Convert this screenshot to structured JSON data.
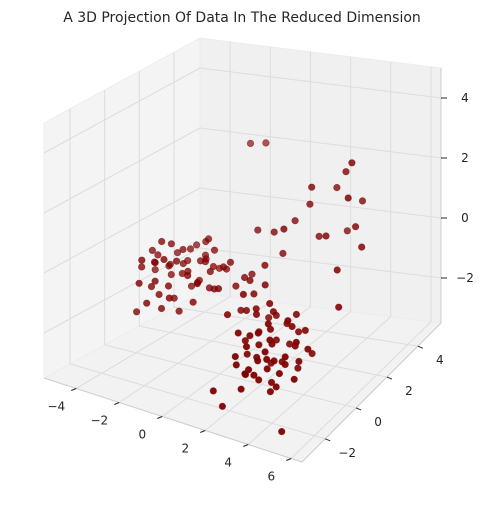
{
  "chart_data": {
    "type": "scatter",
    "projection": "3d",
    "title": "A 3D Projection Of Data In The Reduced Dimension",
    "xlabel": "",
    "ylabel": "",
    "zlabel": "",
    "marker_color": "#800000",
    "grid": true,
    "legend": "none",
    "xlim": [
      -5.5,
      6.5
    ],
    "ylim": [
      -3.5,
      5.5
    ],
    "zlim": [
      -3.5,
      5
    ],
    "x_ticks": [
      "−4",
      "−2",
      "0",
      "2",
      "4",
      "6"
    ],
    "y_ticks": [
      "−2",
      "0",
      "2",
      "4"
    ],
    "z_ticks": [
      "−2",
      "0",
      "2",
      "4"
    ],
    "clusters_note": "",
    "series": [
      {
        "name": "",
        "points": [
          [
            -3.9,
            1.8,
            -1.2
          ],
          [
            -4.1,
            1.2,
            -0.9
          ],
          [
            -3.5,
            2.1,
            -1.5
          ],
          [
            -4.4,
            1.6,
            -1.1
          ],
          [
            -3.2,
            1.4,
            -0.8
          ],
          [
            -3.7,
            2.4,
            -1.3
          ],
          [
            -4.0,
            0.9,
            -1.6
          ],
          [
            -3.3,
            1.9,
            -0.6
          ],
          [
            -4.6,
            2.0,
            -1.0
          ],
          [
            -3.8,
            1.1,
            -1.9
          ],
          [
            -2.9,
            1.7,
            -1.2
          ],
          [
            -3.6,
            2.7,
            -0.9
          ],
          [
            -4.2,
            2.3,
            -1.7
          ],
          [
            -3.1,
            0.8,
            -1.4
          ],
          [
            -4.8,
            1.3,
            -1.2
          ],
          [
            -3.4,
            1.5,
            -2.1
          ],
          [
            -2.7,
            2.2,
            -1.0
          ],
          [
            -3.9,
            2.9,
            -1.4
          ],
          [
            -4.3,
            0.7,
            -0.7
          ],
          [
            -3.0,
            2.5,
            -1.8
          ],
          [
            -2.5,
            1.2,
            -1.1
          ],
          [
            -3.5,
            0.5,
            -1.2
          ],
          [
            -4.5,
            2.6,
            -1.5
          ],
          [
            -2.8,
            2.8,
            -0.5
          ],
          [
            -3.2,
            3.1,
            -1.2
          ],
          [
            -4.0,
            1.5,
            -0.3
          ],
          [
            -3.6,
            1.0,
            -2.3
          ],
          [
            -2.6,
            1.9,
            -1.6
          ],
          [
            -4.7,
            1.8,
            -0.8
          ],
          [
            -3.3,
            2.4,
            -2.0
          ],
          [
            -2.3,
            2.0,
            -0.9
          ],
          [
            -3.8,
            3.3,
            -1.0
          ],
          [
            -4.1,
            0.3,
            -1.3
          ],
          [
            -2.9,
            0.6,
            -1.7
          ],
          [
            -3.7,
            1.7,
            -0.4
          ],
          [
            -2.2,
            1.4,
            -1.4
          ],
          [
            -3.1,
            3.0,
            -0.7
          ],
          [
            -4.4,
            2.9,
            -1.2
          ],
          [
            -2.4,
            2.6,
            -1.3
          ],
          [
            -3.4,
            0.9,
            -0.6
          ],
          [
            -1.9,
            1.8,
            -1.1
          ],
          [
            -3.0,
            1.3,
            -2.4
          ],
          [
            -2.1,
            2.3,
            -0.6
          ],
          [
            -3.9,
            0.5,
            -2.0
          ],
          [
            -1.7,
            1.5,
            -1.5
          ],
          [
            -2.6,
            3.2,
            -1.6
          ],
          [
            -4.9,
            2.2,
            -1.6
          ],
          [
            -1.5,
            2.1,
            -1.0
          ],
          [
            -2.0,
            0.9,
            -1.8
          ],
          [
            -3.5,
            3.5,
            -1.5
          ],
          [
            3.1,
            -0.8,
            -1.6
          ],
          [
            3.5,
            -1.2,
            -1.9
          ],
          [
            2.8,
            -0.5,
            -1.3
          ],
          [
            3.8,
            -0.9,
            -2.1
          ],
          [
            3.3,
            -1.5,
            -1.5
          ],
          [
            2.6,
            -1.1,
            -2.0
          ],
          [
            3.9,
            -0.4,
            -1.7
          ],
          [
            3.0,
            -1.8,
            -2.2
          ],
          [
            3.6,
            -0.2,
            -1.2
          ],
          [
            2.4,
            -0.7,
            -1.8
          ],
          [
            4.1,
            -1.3,
            -1.6
          ],
          [
            3.2,
            -0.3,
            -2.4
          ],
          [
            2.9,
            -1.4,
            -1.0
          ],
          [
            3.7,
            -1.9,
            -1.8
          ],
          [
            2.2,
            -1.0,
            -1.4
          ],
          [
            4.3,
            -0.7,
            -2.0
          ],
          [
            3.4,
            -2.1,
            -1.5
          ],
          [
            2.7,
            0.0,
            -1.9
          ],
          [
            3.9,
            -1.6,
            -2.5
          ],
          [
            3.0,
            -0.9,
            -0.9
          ],
          [
            2.5,
            -1.7,
            -2.3
          ],
          [
            4.0,
            0.1,
            -1.4
          ],
          [
            3.3,
            -1.1,
            -2.7
          ],
          [
            2.1,
            -0.3,
            -1.6
          ],
          [
            4.4,
            -1.0,
            -1.2
          ],
          [
            3.6,
            -2.3,
            -2.0
          ],
          [
            2.8,
            -2.0,
            -1.2
          ],
          [
            3.1,
            0.3,
            -2.1
          ],
          [
            3.8,
            -0.1,
            -2.6
          ],
          [
            2.3,
            -1.4,
            -2.5
          ],
          [
            4.2,
            -1.8,
            -1.9
          ],
          [
            3.5,
            0.2,
            -1.0
          ],
          [
            2.6,
            -0.2,
            -2.6
          ],
          [
            3.2,
            -2.4,
            -1.7
          ],
          [
            3.7,
            -0.6,
            -0.8
          ],
          [
            2.0,
            -0.9,
            -2.1
          ],
          [
            4.5,
            -0.4,
            -1.7
          ],
          [
            3.4,
            -1.3,
            -2.9
          ],
          [
            2.9,
            0.4,
            -1.5
          ],
          [
            3.9,
            -2.2,
            -1.3
          ],
          [
            1.8,
            -1.2,
            -1.3
          ],
          [
            4.1,
            0.4,
            -2.3
          ],
          [
            3.0,
            -2.6,
            -2.3
          ],
          [
            2.4,
            0.2,
            -1.1
          ],
          [
            3.6,
            -1.6,
            -1.0
          ],
          [
            1.6,
            -0.5,
            -1.9
          ],
          [
            4.6,
            -1.4,
            -2.2
          ],
          [
            2.7,
            -2.5,
            -1.6
          ],
          [
            3.3,
            0.6,
            -1.8
          ],
          [
            2.2,
            -1.9,
            -1.7
          ],
          [
            1.0,
            0.8,
            -1.0
          ],
          [
            0.5,
            1.2,
            -0.8
          ],
          [
            1.5,
            0.3,
            -1.2
          ],
          [
            0.0,
            1.5,
            -0.9
          ],
          [
            1.9,
            -0.2,
            -1.1
          ],
          [
            -0.5,
            1.6,
            -1.3
          ],
          [
            0.8,
            0.6,
            -1.5
          ],
          [
            2.3,
            0.1,
            -0.8
          ],
          [
            -1.0,
            1.9,
            -0.7
          ],
          [
            1.2,
            -0.1,
            -0.6
          ],
          [
            0.3,
            0.9,
            -1.7
          ],
          [
            -0.2,
            2.2,
            -1.1
          ],
          [
            1.7,
            0.6,
            -0.5
          ],
          [
            -1.3,
            1.3,
            -1.4
          ],
          [
            0.9,
            1.6,
            -0.4
          ],
          [
            -0.7,
            0.8,
            -1.1
          ],
          [
            2.0,
            0.9,
            -1.6
          ],
          [
            0.6,
            -0.3,
            -1.3
          ],
          [
            -1.6,
            2.4,
            -1.2
          ],
          [
            1.4,
            1.2,
            -1.9
          ],
          [
            4.8,
            2.0,
            3.4
          ],
          [
            3.9,
            2.8,
            2.6
          ],
          [
            4.4,
            3.2,
            1.5
          ],
          [
            2.7,
            2.2,
            2.2
          ],
          [
            5.0,
            1.5,
            2.5
          ],
          [
            3.3,
            3.0,
            1.9
          ],
          [
            4.6,
            2.5,
            1.0
          ],
          [
            2.3,
            2.6,
            1.4
          ],
          [
            3.7,
            1.8,
            0.9
          ],
          [
            5.2,
            2.1,
            0.6
          ],
          [
            1.9,
            1.5,
            1.0
          ],
          [
            2.9,
            2.4,
            0.5
          ],
          [
            1.5,
            2.7,
            0.7
          ],
          [
            3.5,
            3.4,
            0.3
          ],
          [
            0.8,
            2.3,
            0.4
          ],
          [
            -2.4,
            4.8,
            2.0
          ],
          [
            -1.8,
            5.0,
            2.0
          ],
          [
            4.9,
            -2.6,
            -3.3
          ],
          [
            2.2,
            -2.7,
            -3.0
          ],
          [
            5.3,
            0.5,
            -0.6
          ],
          [
            2.0,
            -3.0,
            -2.4
          ],
          [
            -4.8,
            1.0,
            -2.6
          ],
          [
            1.3,
            2.2,
            -0.2
          ],
          [
            -0.4,
            2.8,
            0.1
          ],
          [
            4.7,
            1.2,
            0.2
          ]
        ]
      }
    ]
  }
}
